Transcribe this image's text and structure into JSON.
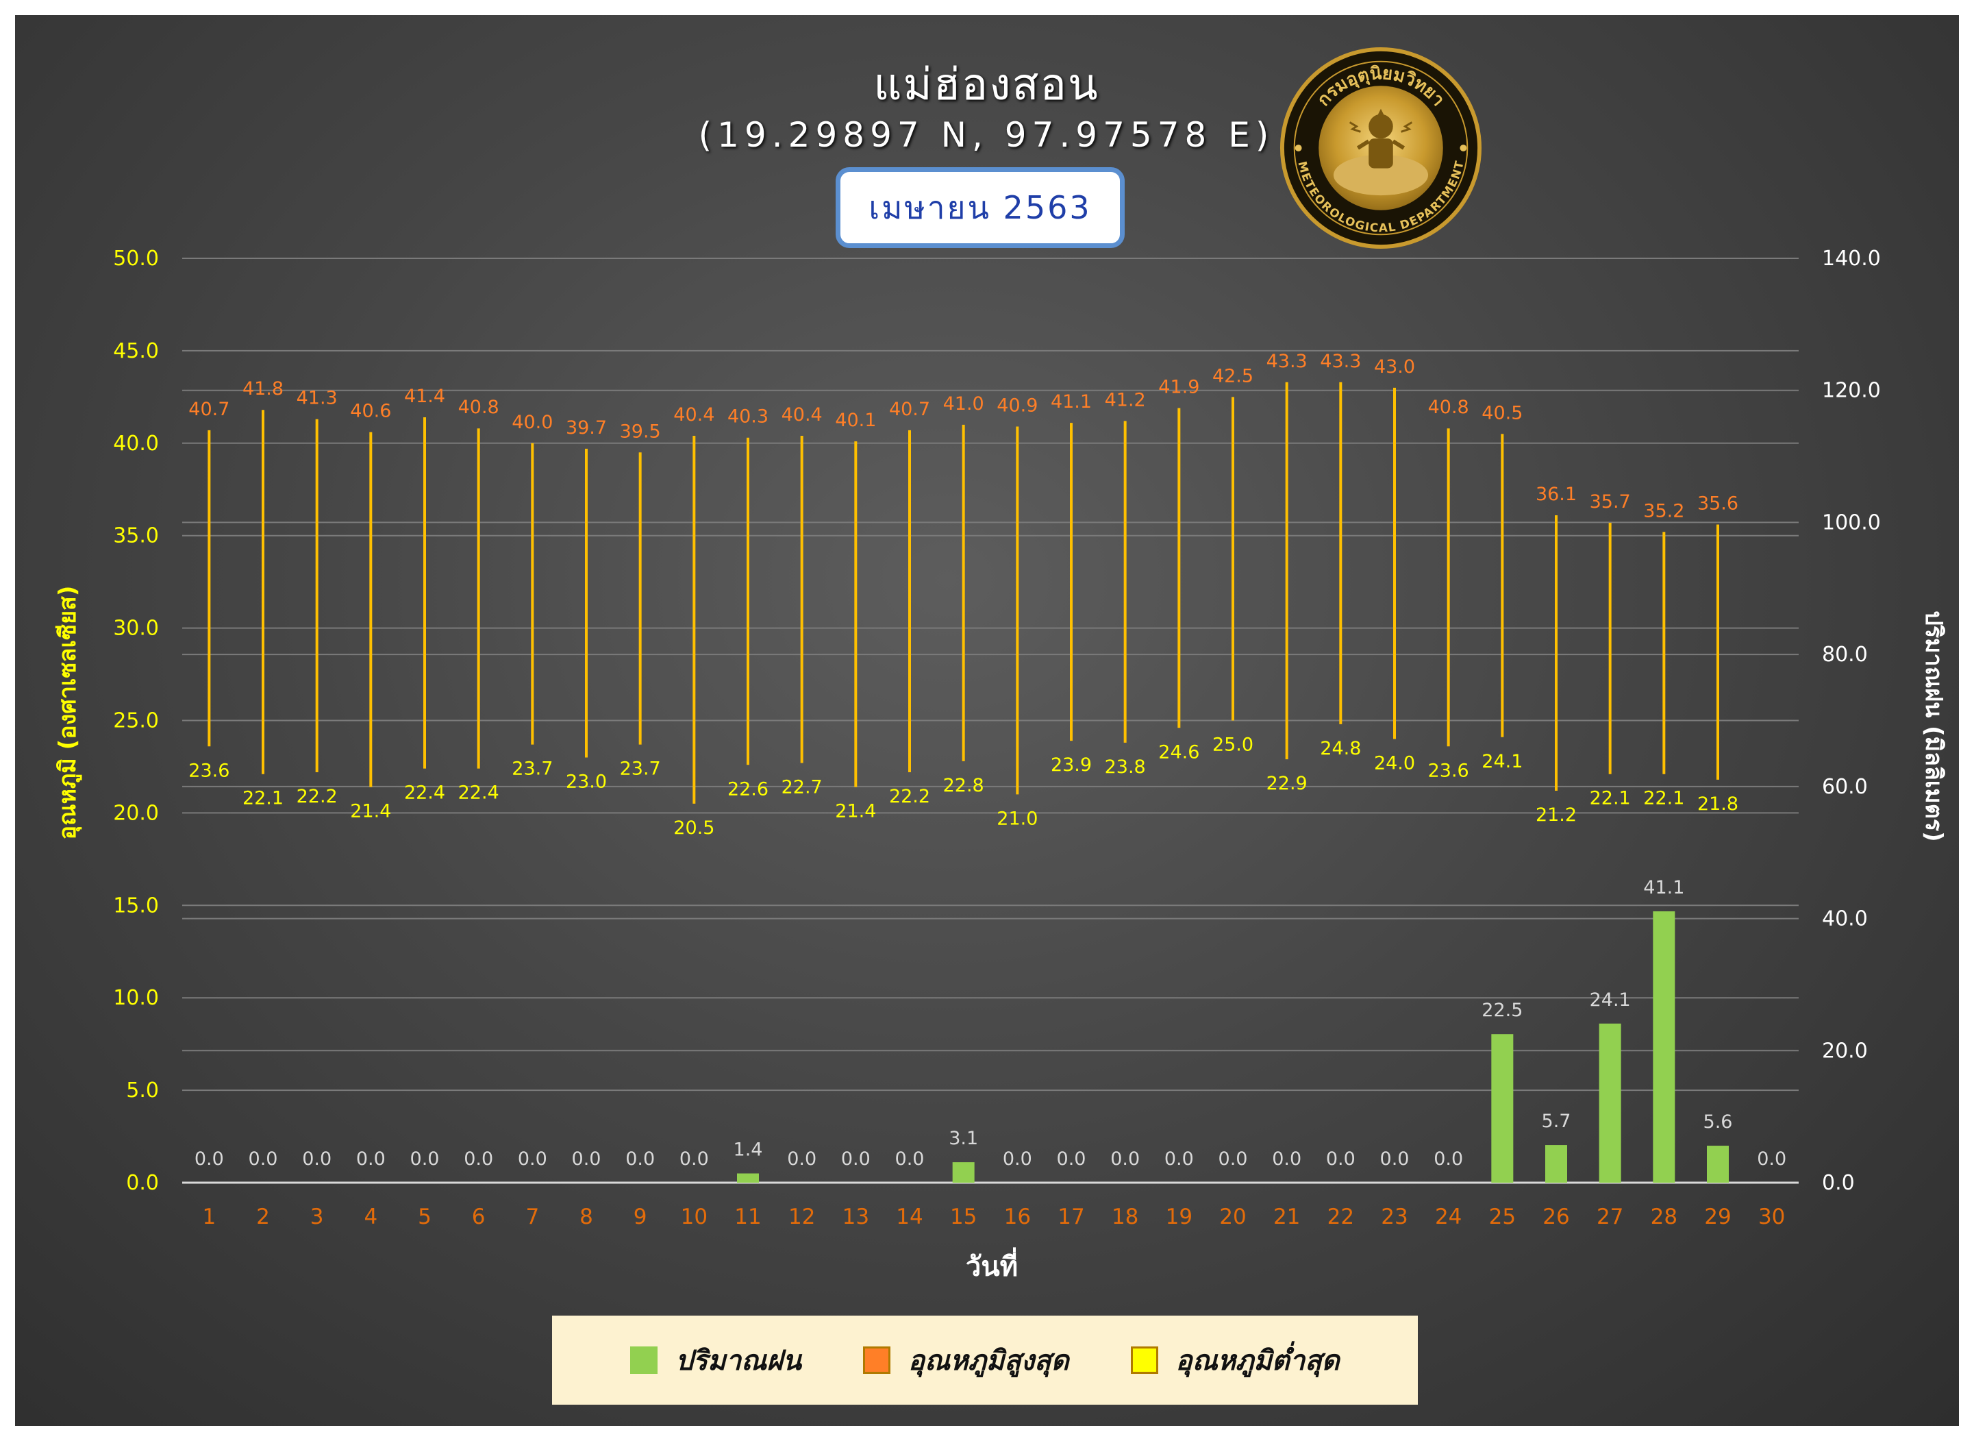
{
  "header": {
    "title": "แม่ฮ่องสอน",
    "coords": "(19.29897 N, 97.97578 E)",
    "month": "เมษายน 2563"
  },
  "seal": {
    "text_top": "กรมอุตุนิยมวิทยา",
    "text_bottom": "METEOROLOGICAL DEPARTMENT"
  },
  "colors": {
    "rain": "#92d050",
    "max_temp": "#ff7f27",
    "min_temp": "#ffff00",
    "range_line": "#ffc000",
    "axis_left_text": "#ffff00",
    "axis_right_text": "#ffffff",
    "x_tick_text": "#e46c0a"
  },
  "legend": [
    {
      "label": "ปริมาณฝน",
      "color": "#92d050"
    },
    {
      "label": "อุณหภูมิสูงสุด",
      "color": "#ff7f27"
    },
    {
      "label": "อุณหภูมิต่ำสุด",
      "color": "#ffff00"
    }
  ],
  "chart_data": {
    "type": "bar",
    "xlabel": "วันที่",
    "ylabel_left": "อุณหภูมิ (องศาเซลเซียส)",
    "ylabel_right": "ปริมาณฝน (มิลลิเมตร)",
    "ylim_left": [
      0,
      50
    ],
    "ylim_right": [
      0,
      140
    ],
    "yticks_left": [
      "0.0",
      "5.0",
      "10.0",
      "15.0",
      "20.0",
      "25.0",
      "30.0",
      "35.0",
      "40.0",
      "45.0",
      "50.0"
    ],
    "yticks_right": [
      "0.0",
      "20.0",
      "40.0",
      "60.0",
      "80.0",
      "100.0",
      "120.0",
      "140.0"
    ],
    "grid": true,
    "legend_position": "bottom",
    "days": [
      "1",
      "2",
      "3",
      "4",
      "5",
      "6",
      "7",
      "8",
      "9",
      "10",
      "11",
      "12",
      "13",
      "14",
      "15",
      "16",
      "17",
      "18",
      "19",
      "20",
      "21",
      "22",
      "23",
      "24",
      "25",
      "26",
      "27",
      "28",
      "29",
      "30"
    ],
    "series": [
      {
        "name": "ปริมาณฝน",
        "kind": "bar",
        "axis": "right",
        "values": [
          0.0,
          0.0,
          0.0,
          0.0,
          0.0,
          0.0,
          0.0,
          0.0,
          0.0,
          0.0,
          1.4,
          0.0,
          0.0,
          0.0,
          3.1,
          0.0,
          0.0,
          0.0,
          0.0,
          0.0,
          0.0,
          0.0,
          0.0,
          0.0,
          22.5,
          5.7,
          24.1,
          41.1,
          5.6,
          0.0
        ]
      },
      {
        "name": "อุณหภูมิสูงสุด",
        "kind": "high",
        "axis": "left",
        "values": [
          40.7,
          41.8,
          41.3,
          40.6,
          41.4,
          40.8,
          40.0,
          39.7,
          39.5,
          40.4,
          40.3,
          40.4,
          40.1,
          40.7,
          41.0,
          40.9,
          41.1,
          41.2,
          41.9,
          42.5,
          43.3,
          43.3,
          43.0,
          40.8,
          40.5,
          36.1,
          35.7,
          35.2,
          35.6,
          null
        ]
      },
      {
        "name": "อุณหภูมิต่ำสุด",
        "kind": "low",
        "axis": "left",
        "values": [
          23.6,
          22.1,
          22.2,
          21.4,
          22.4,
          22.4,
          23.7,
          23.0,
          23.7,
          20.5,
          22.6,
          22.7,
          21.4,
          22.2,
          22.8,
          21.0,
          23.9,
          23.8,
          24.6,
          25.0,
          22.9,
          24.8,
          24.0,
          23.6,
          24.1,
          21.2,
          22.1,
          22.1,
          21.8,
          null
        ]
      }
    ]
  }
}
